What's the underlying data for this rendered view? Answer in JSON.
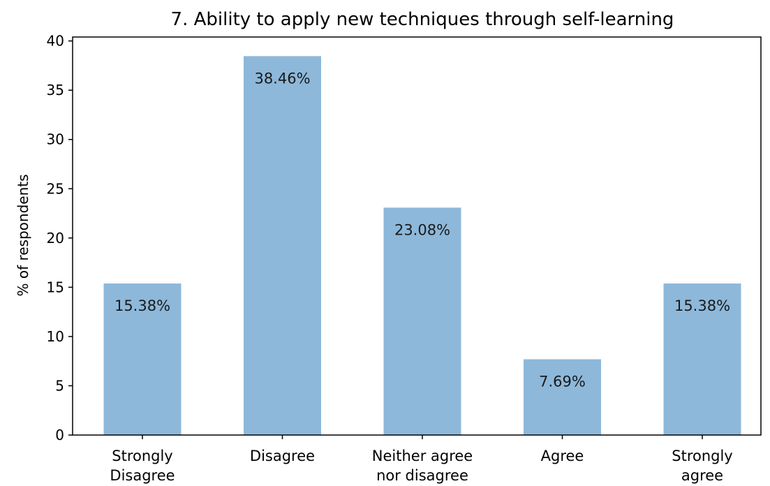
{
  "chart_data": {
    "type": "bar",
    "title": "7. Ability to apply new techniques through self-learning",
    "ylabel": "% of respondents",
    "xlabel": "",
    "categories": [
      [
        "Strongly",
        "Disagree"
      ],
      [
        "Disagree"
      ],
      [
        "Neither agree",
        "nor disagree"
      ],
      [
        "Agree"
      ],
      [
        "Strongly",
        "agree"
      ]
    ],
    "values": [
      15.38,
      38.46,
      23.08,
      7.69,
      15.38
    ],
    "data_labels": [
      "15.38%",
      "38.46%",
      "23.08%",
      "7.69%",
      "15.38%"
    ],
    "yticks": [
      0,
      5,
      10,
      15,
      20,
      25,
      30,
      35,
      40
    ],
    "ylim": [
      0,
      40.4
    ],
    "bar_color": "#8db8da",
    "grid": false,
    "legend": "none"
  }
}
